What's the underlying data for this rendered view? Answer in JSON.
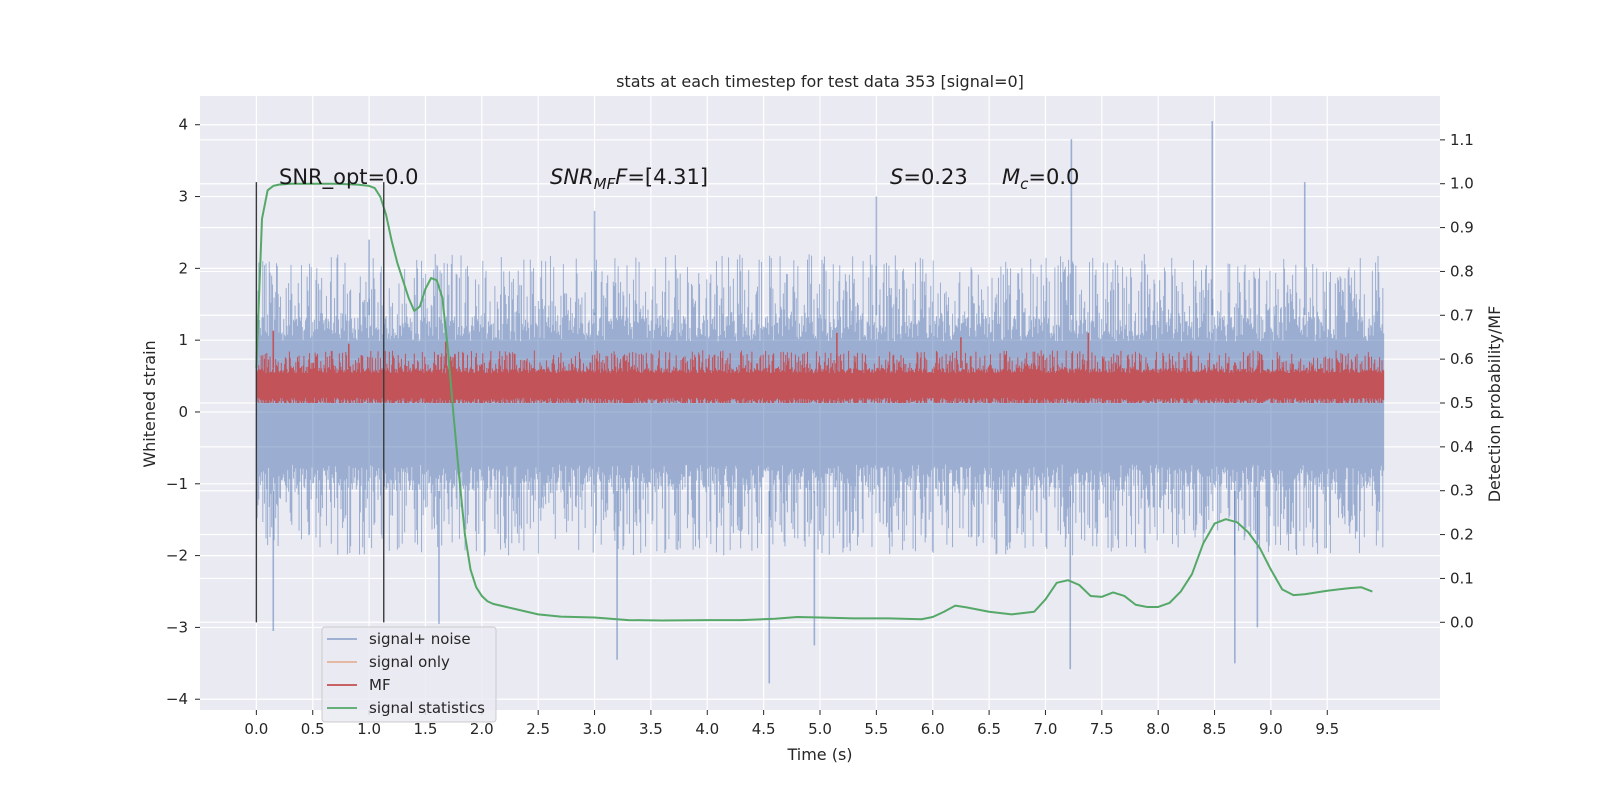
{
  "chart_data": {
    "type": "line",
    "title": "stats at each timestep for test data 353 [signal=0]",
    "xlabel": "Time (s)",
    "ylabel_left": "Whitened strain",
    "ylabel_right": "Detection probability/MF",
    "xlim": [
      -0.5,
      10.5
    ],
    "ylim_left": [
      -4.15,
      4.4
    ],
    "ylim_right": [
      -0.2,
      1.2
    ],
    "x_ticks": [
      "0.0",
      "0.5",
      "1.0",
      "1.5",
      "2.0",
      "2.5",
      "3.0",
      "3.5",
      "4.0",
      "4.5",
      "5.0",
      "5.5",
      "6.0",
      "6.5",
      "7.0",
      "7.5",
      "8.0",
      "8.5",
      "9.0",
      "9.5"
    ],
    "y_ticks_left": [
      "4",
      "3",
      "2",
      "1",
      "0",
      "−1",
      "−2",
      "−3",
      "−4"
    ],
    "y_ticks_right": [
      "1.1",
      "1.0",
      "0.9",
      "0.8",
      "0.7",
      "0.6",
      "0.5",
      "0.4",
      "0.3",
      "0.2",
      "0.1",
      "0.0"
    ],
    "grid": true,
    "legend_position": "lower-left",
    "annotations": {
      "snr_opt": "SNR_opt=0.0",
      "snr_mf_italic": "SNR",
      "snr_mf_sub": "MF",
      "snr_mf_value": "=[4.31]",
      "s_italic": "S",
      "s_value": "=0.23",
      "mc_italic": "M",
      "mc_sub": "c",
      "mc_value": "=0.0"
    },
    "vertical_markers": [
      0.0,
      1.13
    ],
    "series": [
      {
        "name": "signal+ noise",
        "axis": "left",
        "color": "#4c72b0",
        "alpha": 0.5,
        "kind": "dense-noise",
        "x_range": [
          0.0,
          10.0
        ],
        "core_range": [
          -1.1,
          1.35
        ],
        "typical_range": [
          -2.0,
          2.2
        ],
        "extremes": [
          {
            "x": 0.15,
            "y": -3.05
          },
          {
            "x": 1.0,
            "y": 2.4
          },
          {
            "x": 1.62,
            "y": -2.95
          },
          {
            "x": 3.2,
            "y": -3.45
          },
          {
            "x": 3.0,
            "y": 2.8
          },
          {
            "x": 4.55,
            "y": -3.78
          },
          {
            "x": 4.95,
            "y": -3.25
          },
          {
            "x": 5.5,
            "y": 3.0
          },
          {
            "x": 7.23,
            "y": 3.8
          },
          {
            "x": 7.22,
            "y": -3.58
          },
          {
            "x": 8.48,
            "y": 4.05
          },
          {
            "x": 8.68,
            "y": -3.5
          },
          {
            "x": 8.88,
            "y": -3.0
          },
          {
            "x": 9.3,
            "y": 3.2
          }
        ]
      },
      {
        "name": "signal only",
        "axis": "left",
        "color": "#dd8452",
        "alpha": 0.5,
        "kind": "flat",
        "values": []
      },
      {
        "name": "MF",
        "axis": "right",
        "color": "#c44e52",
        "kind": "dense-noise",
        "x_range": [
          0.0,
          10.0
        ],
        "core_range": [
          0.5,
          0.58
        ],
        "typical_range": [
          0.5,
          0.62
        ],
        "extremes": [
          {
            "x": 0.15,
            "y": 0.665
          },
          {
            "x": 0.82,
            "y": 0.635
          },
          {
            "x": 1.68,
            "y": 0.64
          },
          {
            "x": 5.15,
            "y": 0.66
          },
          {
            "x": 6.25,
            "y": 0.65
          },
          {
            "x": 7.38,
            "y": 0.66
          }
        ]
      },
      {
        "name": "signal statistics",
        "axis": "right",
        "color": "#55a868",
        "x": [
          0.0,
          0.05,
          0.1,
          0.15,
          0.2,
          0.3,
          0.5,
          0.7,
          0.9,
          1.0,
          1.05,
          1.1,
          1.15,
          1.2,
          1.25,
          1.3,
          1.35,
          1.4,
          1.45,
          1.5,
          1.55,
          1.6,
          1.65,
          1.7,
          1.75,
          1.8,
          1.85,
          1.9,
          1.95,
          2.0,
          2.05,
          2.1,
          2.2,
          2.3,
          2.5,
          2.7,
          3.0,
          3.3,
          3.6,
          4.0,
          4.3,
          4.6,
          4.8,
          5.0,
          5.3,
          5.6,
          5.9,
          6.0,
          6.1,
          6.2,
          6.3,
          6.5,
          6.7,
          6.9,
          7.0,
          7.1,
          7.2,
          7.3,
          7.4,
          7.5,
          7.6,
          7.7,
          7.8,
          7.9,
          8.0,
          8.1,
          8.2,
          8.3,
          8.4,
          8.5,
          8.6,
          8.7,
          8.8,
          8.9,
          9.0,
          9.1,
          9.2,
          9.3,
          9.4,
          9.5,
          9.6,
          9.7,
          9.8,
          9.9
        ],
        "y": [
          0.58,
          0.92,
          0.985,
          0.995,
          0.998,
          1.0,
          1.0,
          1.0,
          0.998,
          0.995,
          0.99,
          0.97,
          0.93,
          0.87,
          0.82,
          0.78,
          0.74,
          0.71,
          0.72,
          0.76,
          0.785,
          0.78,
          0.74,
          0.62,
          0.47,
          0.33,
          0.2,
          0.12,
          0.08,
          0.06,
          0.048,
          0.042,
          0.036,
          0.03,
          0.018,
          0.013,
          0.011,
          0.005,
          0.004,
          0.005,
          0.005,
          0.008,
          0.012,
          0.011,
          0.009,
          0.009,
          0.007,
          0.012,
          0.024,
          0.038,
          0.034,
          0.024,
          0.018,
          0.024,
          0.052,
          0.09,
          0.096,
          0.085,
          0.06,
          0.058,
          0.068,
          0.06,
          0.04,
          0.035,
          0.035,
          0.044,
          0.07,
          0.11,
          0.18,
          0.225,
          0.235,
          0.228,
          0.205,
          0.17,
          0.12,
          0.075,
          0.062,
          0.064,
          0.068,
          0.072,
          0.075,
          0.078,
          0.08,
          0.07
        ]
      }
    ]
  }
}
